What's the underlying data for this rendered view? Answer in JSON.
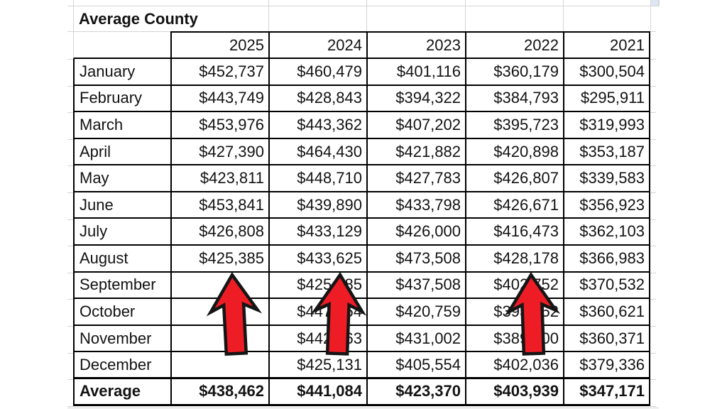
{
  "sheet": {
    "title": "Average County",
    "year_columns": [
      "2025",
      "2024",
      "2023",
      "2022",
      "2021"
    ],
    "rows": [
      {
        "label": "January",
        "values": [
          "$452,737",
          "$460,479",
          "$401,116",
          "$360,179",
          "$300,504"
        ]
      },
      {
        "label": "February",
        "values": [
          "$443,749",
          "$428,843",
          "$394,322",
          "$384,793",
          "$295,911"
        ]
      },
      {
        "label": "March",
        "values": [
          "$453,976",
          "$443,362",
          "$407,202",
          "$395,723",
          "$319,993"
        ]
      },
      {
        "label": "April",
        "values": [
          "$427,390",
          "$464,430",
          "$421,882",
          "$420,898",
          "$353,187"
        ]
      },
      {
        "label": "May",
        "values": [
          "$423,811",
          "$448,710",
          "$427,783",
          "$426,807",
          "$339,583"
        ]
      },
      {
        "label": "June",
        "values": [
          "$453,841",
          "$439,890",
          "$433,798",
          "$426,671",
          "$356,923"
        ]
      },
      {
        "label": "July",
        "values": [
          "$426,808",
          "$433,129",
          "$426,000",
          "$416,473",
          "$362,103"
        ]
      },
      {
        "label": "August",
        "values": [
          "$425,385",
          "$433,625",
          "$473,508",
          "$428,178",
          "$366,983"
        ]
      },
      {
        "label": "September",
        "values": [
          "",
          "$425,985",
          "$437,508",
          "$402,752",
          "$370,532"
        ]
      },
      {
        "label": "October",
        "values": [
          "",
          "$447,164",
          "$420,759",
          "$393,352",
          "$360,621"
        ]
      },
      {
        "label": "November",
        "values": [
          "",
          "$442,263",
          "$431,002",
          "$389,400",
          "$360,371"
        ]
      },
      {
        "label": "December",
        "values": [
          "",
          "$425,131",
          "$405,554",
          "$402,036",
          "$379,336"
        ]
      }
    ],
    "average_row": {
      "label": "Average",
      "values": [
        "$438,462",
        "$441,084",
        "$423,370",
        "$403,939",
        "$347,171"
      ]
    }
  },
  "annotations": {
    "arrow_count": 3,
    "arrow_direction": "up"
  },
  "colors": {
    "arrow_fill": "#ee1c25",
    "arrow_outline": "#151515",
    "grid_line": "#d4d4d4",
    "table_border": "#000000",
    "highlight_cell_fill": "#dbe7f3",
    "text": "#121212"
  }
}
